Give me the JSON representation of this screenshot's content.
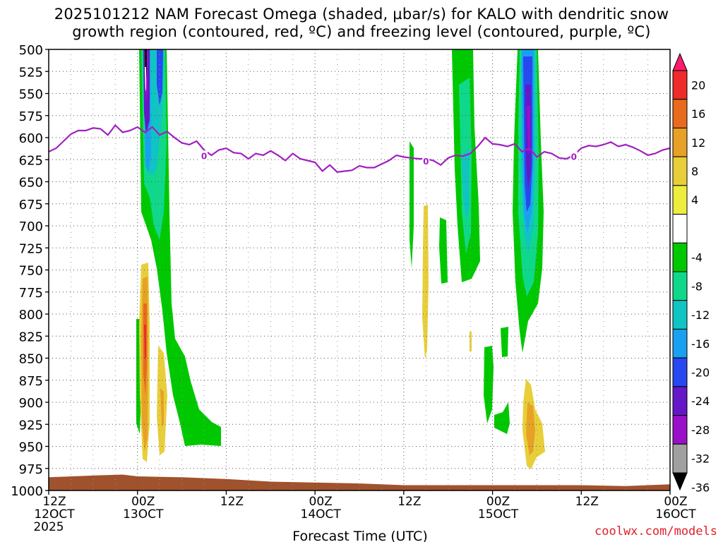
{
  "title_line1": "2025101212 NAM Forecast Omega (shaded, µbar/s) for KALO with dendritic snow",
  "title_line2": "growth region (contoured, red, ºC) and freezing level (contoured, purple, ºC)",
  "credit": "coolwx.com/models",
  "chart_data": {
    "type": "heatmap",
    "title": "2025101212 NAM Forecast Omega (shaded, µbar/s) for KALO with dendritic snow growth region (contoured, red, ºC) and freezing level (contoured, purple, ºC)",
    "xlabel": "Forecast Time (UTC)",
    "ylabel": "",
    "x_ticks": [
      {
        "hour": 0,
        "line1": "12Z",
        "line2": "12OCT",
        "line3": "2025"
      },
      {
        "hour": 12,
        "line1": "00Z",
        "line2": "13OCT",
        "line3": ""
      },
      {
        "hour": 24,
        "line1": "12Z",
        "line2": "",
        "line3": ""
      },
      {
        "hour": 36,
        "line1": "00Z",
        "line2": "14OCT",
        "line3": ""
      },
      {
        "hour": 48,
        "line1": "12Z",
        "line2": "",
        "line3": ""
      },
      {
        "hour": 60,
        "line1": "00Z",
        "line2": "15OCT",
        "line3": ""
      },
      {
        "hour": 72,
        "line1": "12Z",
        "line2": "",
        "line3": ""
      },
      {
        "hour": 84,
        "line1": "00Z",
        "line2": "16OCT",
        "line3": ""
      }
    ],
    "xlim_hours": [
      0,
      84
    ],
    "y_ticks": [
      500,
      525,
      550,
      575,
      600,
      625,
      650,
      675,
      700,
      725,
      750,
      775,
      800,
      825,
      850,
      875,
      900,
      925,
      950,
      975,
      1000
    ],
    "ylim": [
      500,
      1000
    ],
    "grid": true,
    "colorbar": {
      "labels": [
        20,
        16,
        12,
        8,
        4,
        -4,
        -8,
        -12,
        -16,
        -20,
        -24,
        -28,
        -32,
        -36
      ],
      "colors": [
        "#ff1b6f",
        "#ee2a2a",
        "#e86a1d",
        "#e7a126",
        "#e8cf3a",
        "#eded3e",
        "#ffffff",
        "#00c800",
        "#10d88a",
        "#10c4c4",
        "#1aa0f0",
        "#2848f0",
        "#6418c8",
        "#9a10c8",
        "#a0a0a0",
        "#000000"
      ]
    },
    "freezing_level": {
      "label": "0",
      "points": [
        [
          0,
          616
        ],
        [
          1,
          612
        ],
        [
          2,
          604
        ],
        [
          3,
          596
        ],
        [
          4,
          592
        ],
        [
          5,
          592
        ],
        [
          6,
          589
        ],
        [
          7,
          590
        ],
        [
          8,
          597
        ],
        [
          9,
          586
        ],
        [
          10,
          594
        ],
        [
          11,
          592
        ],
        [
          12,
          588
        ],
        [
          13,
          594
        ],
        [
          14,
          588
        ],
        [
          15,
          597
        ],
        [
          16,
          593
        ],
        [
          17,
          600
        ],
        [
          18,
          606
        ],
        [
          19,
          608
        ],
        [
          20,
          604
        ],
        [
          21,
          614
        ],
        [
          22,
          620
        ],
        [
          23,
          614
        ],
        [
          24,
          612
        ],
        [
          25,
          617
        ],
        [
          26,
          618
        ],
        [
          27,
          624
        ],
        [
          28,
          618
        ],
        [
          29,
          620
        ],
        [
          30,
          615
        ],
        [
          31,
          620
        ],
        [
          32,
          626
        ],
        [
          33,
          618
        ],
        [
          34,
          624
        ],
        [
          35,
          626
        ],
        [
          36,
          628
        ],
        [
          37,
          638
        ],
        [
          38,
          631
        ],
        [
          39,
          639
        ],
        [
          40,
          638
        ],
        [
          41,
          637
        ],
        [
          42,
          632
        ],
        [
          43,
          634
        ],
        [
          44,
          634
        ],
        [
          45,
          630
        ],
        [
          46,
          626
        ],
        [
          47,
          620
        ],
        [
          48,
          622
        ],
        [
          49,
          623
        ],
        [
          50,
          624
        ],
        [
          51,
          624
        ],
        [
          52,
          626
        ],
        [
          53,
          631
        ],
        [
          54,
          623
        ],
        [
          55,
          620
        ],
        [
          56,
          621
        ],
        [
          57,
          618
        ],
        [
          58,
          610
        ],
        [
          59,
          600
        ],
        [
          60,
          607
        ],
        [
          61,
          608
        ],
        [
          62,
          610
        ],
        [
          63,
          607
        ],
        [
          64,
          616
        ],
        [
          65,
          612
        ],
        [
          66,
          622
        ],
        [
          67,
          616
        ],
        [
          68,
          618
        ],
        [
          69,
          623
        ],
        [
          70,
          624
        ],
        [
          71,
          620
        ],
        [
          72,
          612
        ],
        [
          73,
          609
        ],
        [
          74,
          610
        ],
        [
          75,
          608
        ],
        [
          76,
          605
        ],
        [
          77,
          610
        ],
        [
          78,
          608
        ],
        [
          79,
          611
        ],
        [
          80,
          615
        ],
        [
          81,
          620
        ],
        [
          82,
          618
        ],
        [
          83,
          614
        ],
        [
          84,
          612
        ]
      ],
      "label_positions": [
        [
          21,
          621
        ],
        [
          51,
          627
        ],
        [
          71,
          622
        ]
      ]
    },
    "terrain_top": [
      [
        0,
        985
      ],
      [
        6,
        983
      ],
      [
        10,
        982
      ],
      [
        12,
        984
      ],
      [
        18,
        985
      ],
      [
        24,
        987
      ],
      [
        30,
        990
      ],
      [
        36,
        991
      ],
      [
        42,
        992
      ],
      [
        48,
        994
      ],
      [
        60,
        994
      ],
      [
        72,
        994
      ],
      [
        78,
        995
      ],
      [
        84,
        993
      ]
    ]
  }
}
